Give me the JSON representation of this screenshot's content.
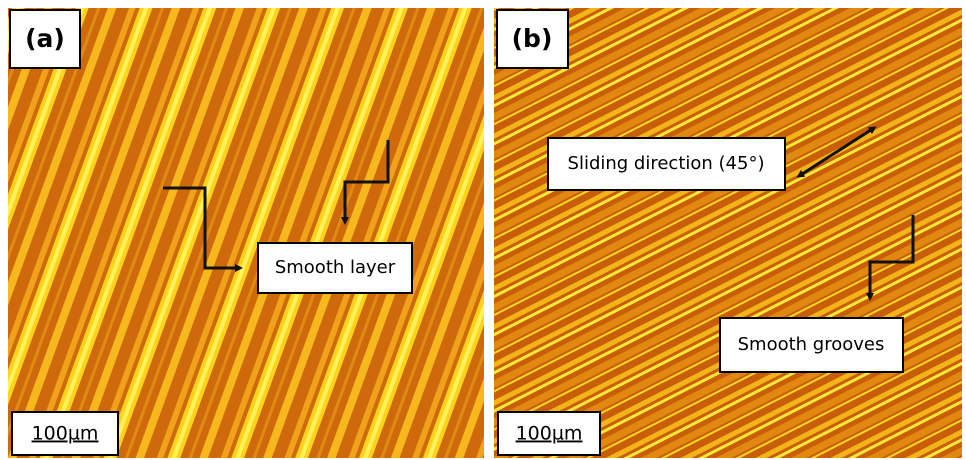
{
  "panels": [
    {
      "label": "(a)",
      "annotations": [
        "Smooth layer"
      ],
      "scale_bar": "100µm"
    },
    {
      "label": "(b)",
      "annotations": [
        "Sliding direction (45°)",
        "Smooth grooves"
      ],
      "scale_bar": "100µm"
    }
  ]
}
